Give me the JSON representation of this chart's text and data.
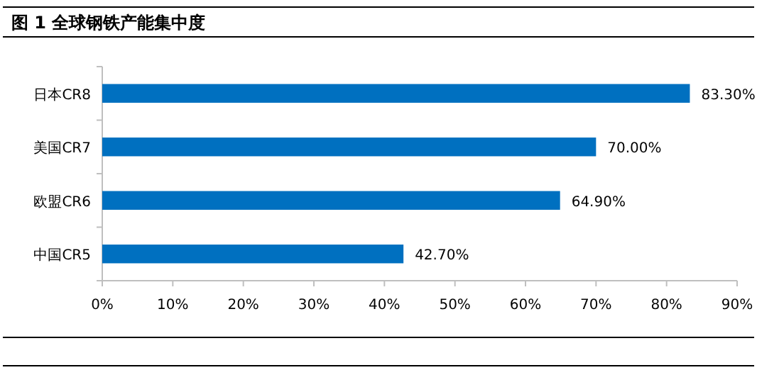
{
  "chart_data": {
    "type": "bar",
    "orientation": "horizontal",
    "title": "图 1 全球钢铁产能集中度",
    "categories": [
      "日本CR8",
      "美国CR7",
      "欧盟CR6",
      "中国CR5"
    ],
    "values": [
      83.3,
      70.0,
      64.9,
      42.7
    ],
    "value_labels": [
      "83.30%",
      "70.00%",
      "64.90%",
      "42.70%"
    ],
    "color": "#0070c0",
    "xlim": [
      0,
      90
    ],
    "xticks": [
      {
        "value": 0,
        "label": "0%"
      },
      {
        "value": 10,
        "label": "10%"
      },
      {
        "value": 20,
        "label": "20%"
      },
      {
        "value": 30,
        "label": "30%"
      },
      {
        "value": 40,
        "label": "40%"
      },
      {
        "value": 50,
        "label": "50%"
      },
      {
        "value": 60,
        "label": "60%"
      },
      {
        "value": 70,
        "label": "70%"
      },
      {
        "value": 80,
        "label": "80%"
      },
      {
        "value": 90,
        "label": "90%"
      }
    ]
  }
}
